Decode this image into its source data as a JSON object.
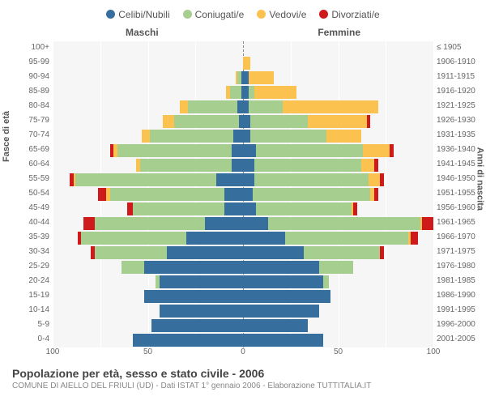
{
  "legend": {
    "items": [
      {
        "label": "Celibi/Nubili",
        "color": "#366f9e"
      },
      {
        "label": "Coniugati/e",
        "color": "#a6ce8f"
      },
      {
        "label": "Vedovi/e",
        "color": "#fbc24f"
      },
      {
        "label": "Divorziati/e",
        "color": "#cf1a1b"
      }
    ]
  },
  "genders": {
    "male": "Maschi",
    "female": "Femmine"
  },
  "axis_titles": {
    "left": "Fasce di età",
    "right": "Anni di nascita"
  },
  "title": "Popolazione per età, sesso e stato civile - 2006",
  "subtitle": "COMUNE DI AIELLO DEL FRIULI (UD) - Dati ISTAT 1° gennaio 2006 - Elaborazione TUTTITALIA.IT",
  "x_axis": {
    "max": 100,
    "ticks": [
      100,
      50,
      0,
      50,
      100
    ]
  },
  "colors": {
    "celibi": "#366f9e",
    "coniugati": "#a6ce8f",
    "vedovi": "#fbc24f",
    "divorziati": "#cf1a1b",
    "plot_bg": "#f6f6f6",
    "grid": "#ffffff"
  },
  "rows": [
    {
      "age": "100+",
      "year": "≤ 1905",
      "m": [
        0,
        0,
        0,
        0
      ],
      "f": [
        0,
        0,
        0,
        0
      ]
    },
    {
      "age": "95-99",
      "year": "1906-1910",
      "m": [
        0,
        0,
        0,
        0
      ],
      "f": [
        0,
        0,
        4,
        0
      ]
    },
    {
      "age": "90-94",
      "year": "1911-1915",
      "m": [
        1,
        2,
        1,
        0
      ],
      "f": [
        3,
        0,
        13,
        0
      ]
    },
    {
      "age": "85-89",
      "year": "1916-1920",
      "m": [
        1,
        6,
        2,
        0
      ],
      "f": [
        3,
        3,
        22,
        0
      ]
    },
    {
      "age": "80-84",
      "year": "1921-1925",
      "m": [
        3,
        26,
        4,
        0
      ],
      "f": [
        3,
        18,
        50,
        0
      ]
    },
    {
      "age": "75-79",
      "year": "1926-1930",
      "m": [
        2,
        34,
        6,
        0
      ],
      "f": [
        4,
        30,
        31,
        2
      ]
    },
    {
      "age": "70-74",
      "year": "1931-1935",
      "m": [
        5,
        44,
        4,
        0
      ],
      "f": [
        4,
        40,
        18,
        0
      ]
    },
    {
      "age": "65-69",
      "year": "1936-1940",
      "m": [
        6,
        60,
        2,
        2
      ],
      "f": [
        7,
        56,
        14,
        2
      ]
    },
    {
      "age": "60-64",
      "year": "1941-1945",
      "m": [
        6,
        48,
        2,
        0
      ],
      "f": [
        6,
        56,
        7,
        2
      ]
    },
    {
      "age": "55-59",
      "year": "1946-1950",
      "m": [
        14,
        74,
        1,
        2
      ],
      "f": [
        6,
        60,
        6,
        2
      ]
    },
    {
      "age": "50-54",
      "year": "1951-1955",
      "m": [
        10,
        60,
        2,
        4
      ],
      "f": [
        5,
        62,
        2,
        2
      ]
    },
    {
      "age": "45-49",
      "year": "1956-1960",
      "m": [
        10,
        48,
        0,
        3
      ],
      "f": [
        7,
        50,
        1,
        2
      ]
    },
    {
      "age": "40-44",
      "year": "1961-1965",
      "m": [
        20,
        58,
        0,
        6
      ],
      "f": [
        13,
        80,
        1,
        6
      ]
    },
    {
      "age": "35-39",
      "year": "1966-1970",
      "m": [
        30,
        55,
        0,
        2
      ],
      "f": [
        22,
        65,
        1,
        4
      ]
    },
    {
      "age": "30-34",
      "year": "1971-1975",
      "m": [
        40,
        38,
        0,
        2
      ],
      "f": [
        32,
        40,
        0,
        2
      ]
    },
    {
      "age": "25-29",
      "year": "1976-1980",
      "m": [
        52,
        12,
        0,
        0
      ],
      "f": [
        40,
        18,
        0,
        0
      ]
    },
    {
      "age": "20-24",
      "year": "1981-1985",
      "m": [
        44,
        2,
        0,
        0
      ],
      "f": [
        42,
        3,
        0,
        0
      ]
    },
    {
      "age": "15-19",
      "year": "1986-1990",
      "m": [
        52,
        0,
        0,
        0
      ],
      "f": [
        46,
        0,
        0,
        0
      ]
    },
    {
      "age": "10-14",
      "year": "1991-1995",
      "m": [
        44,
        0,
        0,
        0
      ],
      "f": [
        40,
        0,
        0,
        0
      ]
    },
    {
      "age": "5-9",
      "year": "1996-2000",
      "m": [
        48,
        0,
        0,
        0
      ],
      "f": [
        34,
        0,
        0,
        0
      ]
    },
    {
      "age": "0-4",
      "year": "2001-2005",
      "m": [
        58,
        0,
        0,
        0
      ],
      "f": [
        42,
        0,
        0,
        0
      ]
    }
  ]
}
